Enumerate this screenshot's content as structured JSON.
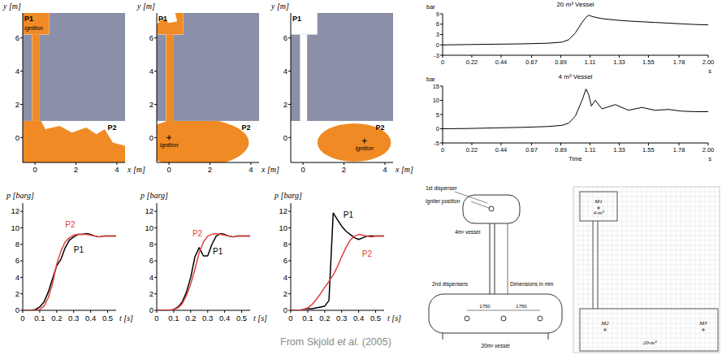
{
  "chart_data": [
    {
      "type": "line",
      "y_label": "p [barg]",
      "x_label": "t [s]",
      "x": [
        0,
        0.025,
        0.05,
        0.075,
        0.1,
        0.125,
        0.15,
        0.175,
        0.2,
        0.225,
        0.25,
        0.275,
        0.3,
        0.325,
        0.35,
        0.375,
        0.4,
        0.425,
        0.45,
        0.475,
        0.5,
        0.525,
        0.55
      ],
      "xlim": [
        0,
        0.55
      ],
      "xticks": [
        0,
        0.1,
        0.2,
        0.3,
        0.4,
        0.5
      ],
      "ylim": [
        0,
        13
      ],
      "yticks": [
        0,
        2,
        4,
        6,
        8,
        10,
        12
      ],
      "series": [
        {
          "name": "P1",
          "color": "#000000",
          "values": [
            0,
            0,
            0,
            0.1,
            0.4,
            1.0,
            2.2,
            3.8,
            5.4,
            6.2,
            7.6,
            8.5,
            8.9,
            9.2,
            9.2,
            9.3,
            9.2,
            9.0,
            8.9,
            9.0,
            9.0,
            9.0,
            9.0
          ]
        },
        {
          "name": "P2",
          "color": "#e0403a",
          "values": [
            0,
            0,
            0,
            0,
            0.1,
            0.5,
            1.5,
            3.2,
            5.6,
            7.2,
            8.3,
            8.8,
            9.1,
            9.2,
            9.2,
            9.2,
            9.1,
            9.0,
            8.9,
            9.0,
            9.0,
            9.0,
            9.0
          ]
        }
      ]
    },
    {
      "type": "line",
      "y_label": "p [barg]",
      "x_label": "t [s]",
      "x": [
        0,
        0.025,
        0.05,
        0.075,
        0.1,
        0.125,
        0.15,
        0.175,
        0.2,
        0.225,
        0.25,
        0.275,
        0.3,
        0.325,
        0.35,
        0.375,
        0.4,
        0.425,
        0.45,
        0.475,
        0.5,
        0.525,
        0.55
      ],
      "xlim": [
        0,
        0.55
      ],
      "xticks": [
        0,
        0.1,
        0.2,
        0.3,
        0.4,
        0.5
      ],
      "ylim": [
        0,
        13
      ],
      "yticks": [
        0,
        2,
        4,
        6,
        8,
        10,
        12
      ],
      "series": [
        {
          "name": "P1",
          "color": "#000000",
          "values": [
            0,
            0,
            0,
            0,
            0.1,
            0.4,
            1.0,
            2.2,
            4.0,
            6.5,
            7.6,
            6.6,
            6.6,
            8.0,
            9.0,
            9.3,
            9.2,
            9.0,
            8.9,
            9.0,
            9.0,
            9.0,
            9.0
          ]
        },
        {
          "name": "P2",
          "color": "#e0403a",
          "values": [
            0,
            0,
            0,
            0,
            0.1,
            0.3,
            0.8,
            1.8,
            3.2,
            5.0,
            7.0,
            8.3,
            9.0,
            9.2,
            9.3,
            9.2,
            9.1,
            9.0,
            8.9,
            9.0,
            9.0,
            9.0,
            9.0
          ]
        }
      ]
    },
    {
      "type": "line",
      "y_label": "p [barg]",
      "x_label": "t [s]",
      "x": [
        0,
        0.025,
        0.05,
        0.075,
        0.1,
        0.125,
        0.15,
        0.175,
        0.2,
        0.225,
        0.25,
        0.275,
        0.3,
        0.325,
        0.35,
        0.375,
        0.4,
        0.425,
        0.45,
        0.475,
        0.5,
        0.525,
        0.55
      ],
      "xlim": [
        0,
        0.55
      ],
      "xticks": [
        0,
        0.1,
        0.2,
        0.3,
        0.4,
        0.5
      ],
      "ylim": [
        0,
        13
      ],
      "yticks": [
        0,
        2,
        4,
        6,
        8,
        10,
        12
      ],
      "series": [
        {
          "name": "P1",
          "color": "#000000",
          "values": [
            0,
            0,
            0,
            0.1,
            0.2,
            0.2,
            0.3,
            0.4,
            0.5,
            1.2,
            11.8,
            11.0,
            10.2,
            9.6,
            9.2,
            8.8,
            8.6,
            8.8,
            9.0,
            9.0,
            9.0,
            9.0,
            9.0
          ]
        },
        {
          "name": "P2",
          "color": "#e0403a",
          "values": [
            0,
            0,
            0,
            0.1,
            0.3,
            0.7,
            1.3,
            2.0,
            2.8,
            3.5,
            4.3,
            5.3,
            6.5,
            7.6,
            8.5,
            9.0,
            9.2,
            9.1,
            9.0,
            8.9,
            9.0,
            9.0,
            9.0
          ]
        }
      ]
    },
    {
      "type": "line",
      "title": "20 m³ Vessel",
      "y_label": "bar",
      "x_unit": "s",
      "x": [
        0,
        0.2,
        0.4,
        0.6,
        0.8,
        0.9,
        0.95,
        1.0,
        1.05,
        1.08,
        1.1,
        1.12,
        1.15,
        1.2,
        1.3,
        1.4,
        1.5,
        1.6,
        1.7,
        1.8,
        1.9,
        2.0
      ],
      "xlim": [
        0,
        2
      ],
      "xticks": [
        0,
        0.22,
        0.44,
        0.67,
        0.89,
        1.11,
        1.33,
        1.55,
        1.78,
        {
          "value": 2,
          "label": "2.00"
        }
      ],
      "ylim": [
        -3,
        9
      ],
      "yticks": [
        -3,
        0,
        3,
        6,
        9
      ],
      "series": [
        {
          "color": "#000000",
          "values": [
            0,
            0.1,
            0.2,
            0.3,
            0.5,
            0.8,
            1.5,
            3.5,
            6.5,
            8.0,
            8.6,
            8.3,
            8.0,
            7.6,
            7.2,
            6.9,
            6.7,
            6.5,
            6.3,
            6.1,
            5.9,
            5.8
          ]
        }
      ]
    },
    {
      "type": "line",
      "title": "4 m³ Vessel",
      "y_label": "bar",
      "x_label": "Time",
      "x_unit": "s",
      "x": [
        0,
        0.2,
        0.4,
        0.6,
        0.8,
        0.9,
        0.95,
        1.0,
        1.05,
        1.08,
        1.1,
        1.12,
        1.15,
        1.2,
        1.3,
        1.4,
        1.5,
        1.6,
        1.7,
        1.8,
        1.9,
        2.0
      ],
      "xlim": [
        0,
        2
      ],
      "xticks": [
        0,
        0.22,
        0.44,
        0.67,
        0.89,
        1.11,
        1.33,
        1.55,
        1.78,
        {
          "value": 2,
          "label": "2.00"
        }
      ],
      "ylim": [
        -5,
        15
      ],
      "yticks": [
        -5,
        0,
        5,
        10,
        15
      ],
      "series": [
        {
          "color": "#000000",
          "values": [
            0,
            0.1,
            0.3,
            0.5,
            0.8,
            1.2,
            2.0,
            4.5,
            10.0,
            14.0,
            12.0,
            8.0,
            10.0,
            7.0,
            8.5,
            6.5,
            7.5,
            6.5,
            6.8,
            6.2,
            6.0,
            6.0
          ]
        }
      ]
    }
  ],
  "diagrams": [
    {
      "x_label": "x [m]",
      "y_label": "y [m]",
      "xlim": [
        -0.6,
        4.4
      ],
      "ylim": [
        -1.5,
        7.5
      ],
      "xticks": [
        0,
        2,
        4
      ],
      "yticks": [
        0,
        2,
        4,
        6
      ],
      "labels": [
        "P1",
        "P2"
      ],
      "ignition": "Ignition"
    },
    {
      "x_label": "x [m]",
      "y_label": "y [m]",
      "xlim": [
        -0.6,
        4.4
      ],
      "ylim": [
        -1.5,
        7.5
      ],
      "xticks": [
        0,
        2,
        4
      ],
      "yticks": [
        0,
        2,
        4,
        6
      ],
      "labels": [
        "P1",
        "P2"
      ],
      "ignition": "Ignition"
    },
    {
      "x_label": "x [m]",
      "y_label": "y [m]",
      "xlim": [
        -0.6,
        4.4
      ],
      "ylim": [
        -1.5,
        7.5
      ],
      "xticks": [
        0,
        2,
        4
      ],
      "yticks": [
        0,
        2,
        4,
        6
      ],
      "labels": [
        "P1",
        "P2"
      ],
      "ignition": "Ignition"
    }
  ],
  "caption": {
    "text": "From Skjold ",
    "italic": "et al.",
    "end": " (2005)"
  },
  "apparatus": {
    "labels": [
      "1st dispenser",
      "Igniter position",
      "4m³ vessel",
      "2nd dispensers",
      "Dimensions in mm",
      "1750",
      "1750",
      "20m³ vessel"
    ]
  },
  "model": {
    "labels": [
      "M1",
      "4-m³",
      "M2",
      "M3",
      "20-m³"
    ]
  }
}
